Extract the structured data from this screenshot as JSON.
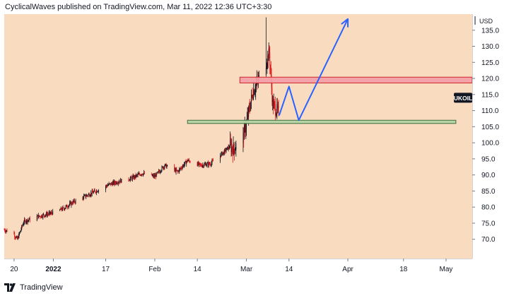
{
  "header": {
    "publisher_line": "CyclicalWaves published on TradingView.com, Mar 11, 2022 12:36 UTC+3:30"
  },
  "footer": {
    "brand": "TradingView",
    "logo_icon": "tradingview-logo-icon"
  },
  "colors": {
    "background": "#f9dcc0",
    "up_candle": "#131722",
    "down_candle": "#e2171a",
    "resistance_zone_fill": "#f2a0a8",
    "resistance_zone_stroke": "#d2242c",
    "support_zone_fill": "#b5d4a6",
    "support_zone_stroke": "#3b6e3a",
    "projection_line": "#2962ff",
    "symbol_badge": "#131722"
  },
  "chart_data": {
    "type": "candlestick",
    "symbol": "UKOIL",
    "currency": "USD",
    "y_axis_label": "USD",
    "ylim": [
      64,
      140
    ],
    "y_ticks": [
      70,
      75,
      80,
      85,
      90,
      95,
      100,
      105,
      110,
      115,
      120,
      125,
      130,
      135
    ],
    "y_tick_labels": [
      "70.0",
      "75.0",
      "80.0",
      "85.0",
      "90.0",
      "95.0",
      "100.0",
      "105.0",
      "110.0",
      "115.0",
      "120.0",
      "125.0",
      "130.0",
      "135.0"
    ],
    "x_tick_labels": [
      "20",
      "2022",
      "17",
      "Feb",
      "14",
      "Mar",
      "14",
      "Apr",
      "18",
      "May"
    ],
    "x_tick_dates": [
      "2021-12-20",
      "2022-01-01",
      "2022-01-17",
      "2022-02-01",
      "2022-02-14",
      "2022-03-01",
      "2022-03-14",
      "2022-04-01",
      "2022-04-18",
      "2022-05-01"
    ],
    "x_range": [
      "2021-12-17",
      "2022-05-09"
    ],
    "bar_interval": "4h",
    "price_path": [
      [
        "2021-12-17",
        73.0
      ],
      [
        "2021-12-20",
        71.5
      ],
      [
        "2021-12-21",
        70.0
      ],
      [
        "2021-12-23",
        75.5
      ],
      [
        "2021-12-27",
        77.0
      ],
      [
        "2021-12-31",
        78.0
      ],
      [
        "2022-01-04",
        79.5
      ],
      [
        "2022-01-07",
        81.5
      ],
      [
        "2022-01-11",
        83.5
      ],
      [
        "2022-01-14",
        85.0
      ],
      [
        "2022-01-18",
        87.0
      ],
      [
        "2022-01-21",
        88.0
      ],
      [
        "2022-01-25",
        89.0
      ],
      [
        "2022-01-28",
        90.5
      ],
      [
        "2022-02-01",
        89.5
      ],
      [
        "2022-02-04",
        93.0
      ],
      [
        "2022-02-08",
        91.0
      ],
      [
        "2022-02-11",
        94.5
      ],
      [
        "2022-02-15",
        93.0
      ],
      [
        "2022-02-18",
        93.5
      ],
      [
        "2022-02-22",
        97.0
      ],
      [
        "2022-02-24",
        99.0
      ],
      [
        "2022-02-25",
        98.0
      ],
      [
        "2022-02-28",
        102.0
      ],
      [
        "2022-03-01",
        106.0
      ],
      [
        "2022-03-02",
        111.0
      ],
      [
        "2022-03-03",
        116.0
      ],
      [
        "2022-03-04",
        118.0
      ],
      [
        "2022-03-07",
        125.0
      ],
      [
        "2022-03-08",
        128.0
      ],
      [
        "2022-03-09",
        112.0
      ],
      [
        "2022-03-10",
        110.5
      ],
      [
        "2022-03-11",
        109.0
      ]
    ],
    "spike_high": {
      "date": "2022-03-07",
      "value": 139.0
    },
    "zones": [
      {
        "name": "resistance",
        "y_low": 118.6,
        "y_high": 120.4,
        "x_start": "2022-02-27",
        "x_end": "2022-05-09"
      },
      {
        "name": "support",
        "y_low": 106.0,
        "y_high": 107.0,
        "x_start": "2022-02-11",
        "x_end": "2022-05-04"
      }
    ],
    "projection_path": [
      [
        "2022-03-11",
        108.5
      ],
      [
        "2022-03-14",
        117.5
      ],
      [
        "2022-03-17",
        107.0
      ],
      [
        "2022-04-01",
        138.5
      ]
    ],
    "last_price_label": "UKOIL",
    "grid": false
  }
}
